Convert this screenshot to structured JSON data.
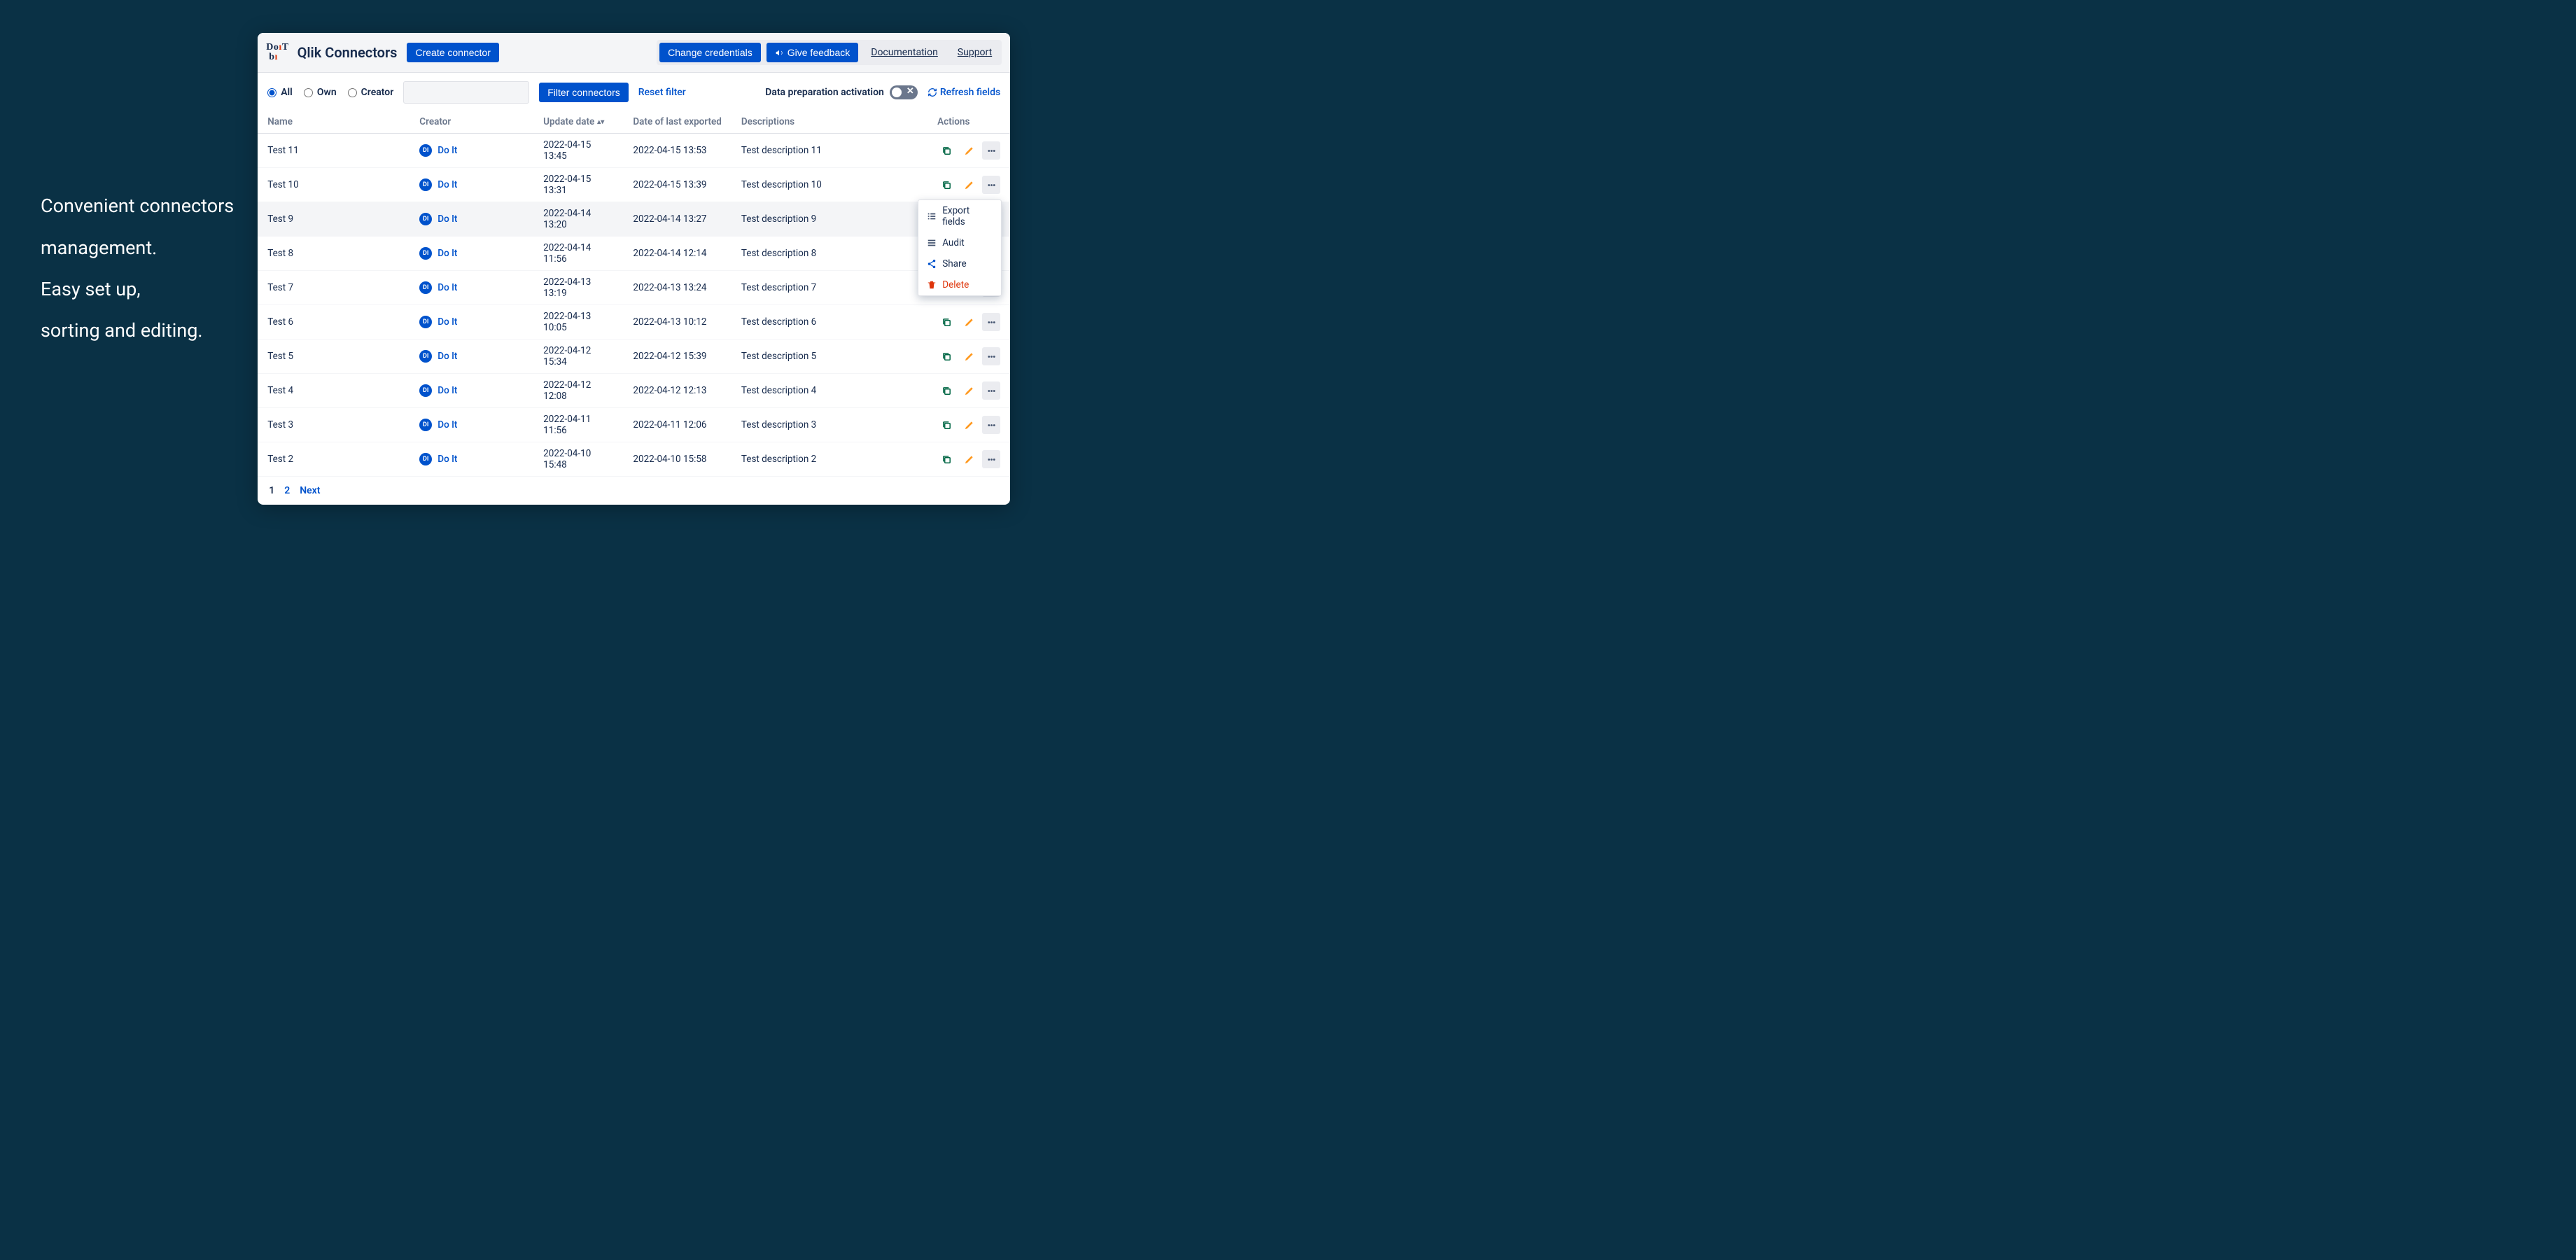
{
  "promo": {
    "line1": "Convenient connectors",
    "line2": "management.",
    "line3": "Easy set up,",
    "line4": "sorting and editing."
  },
  "header": {
    "title": "Qlik Connectors",
    "create_btn": "Create connector",
    "change_creds_btn": "Change credentials",
    "feedback_btn": "Give feedback",
    "doc_link": "Documentation",
    "support_link": "Support"
  },
  "filters": {
    "radio_all": "All",
    "radio_own": "Own",
    "radio_creator": "Creator",
    "selected": "all",
    "filter_btn": "Filter connectors",
    "reset_link": "Reset filter",
    "prep_label": "Data preparation activation",
    "refresh_link": "Refresh fields"
  },
  "columns": {
    "name": "Name",
    "creator": "Creator",
    "update": "Update date",
    "exported": "Date of last exported",
    "desc": "Descriptions",
    "actions": "Actions"
  },
  "creator": {
    "initials": "DI",
    "label": "Do It"
  },
  "rows": [
    {
      "name": "Test 11",
      "update": "2022-04-15 13:45",
      "exported": "2022-04-15 13:53",
      "desc": "Test description 11"
    },
    {
      "name": "Test 10",
      "update": "2022-04-15 13:31",
      "exported": "2022-04-15 13:39",
      "desc": "Test description 10"
    },
    {
      "name": "Test 9",
      "update": "2022-04-14 13:20",
      "exported": "2022-04-14 13:27",
      "desc": "Test description 9"
    },
    {
      "name": "Test 8",
      "update": "2022-04-14 11:56",
      "exported": "2022-04-14 12:14",
      "desc": "Test description 8"
    },
    {
      "name": "Test 7",
      "update": "2022-04-13 13:19",
      "exported": "2022-04-13 13:24",
      "desc": "Test description 7"
    },
    {
      "name": "Test 6",
      "update": "2022-04-13 10:05",
      "exported": "2022-04-13 10:12",
      "desc": "Test description 6"
    },
    {
      "name": "Test 5",
      "update": "2022-04-12 15:34",
      "exported": "2022-04-12 15:39",
      "desc": "Test description 5"
    },
    {
      "name": "Test 4",
      "update": "2022-04-12 12:08",
      "exported": "2022-04-12 12:13",
      "desc": "Test description 4"
    },
    {
      "name": "Test 3",
      "update": "2022-04-11 11:56",
      "exported": "2022-04-11 12:06",
      "desc": "Test description 3"
    },
    {
      "name": "Test 2",
      "update": "2022-04-10 15:48",
      "exported": "2022-04-10 15:58",
      "desc": "Test description 2"
    }
  ],
  "highlight_row": 2,
  "dropdown": {
    "export": "Export fields",
    "audit": "Audit",
    "share": "Share",
    "delete": "Delete"
  },
  "pagination": {
    "p1": "1",
    "p2": "2",
    "next": "Next",
    "current": 1
  },
  "colors": {
    "bg": "#0a3145",
    "primary": "#0052cc",
    "text": "#172b4d",
    "muted": "#6b778c",
    "danger": "#de350b",
    "copy_green": "#006644",
    "edit_orange": "#ff991f"
  }
}
